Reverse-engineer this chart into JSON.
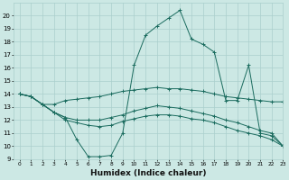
{
  "xlabel": "Humidex (Indice chaleur)",
  "bg_color": "#cce8e4",
  "grid_color": "#aacfcc",
  "line_color": "#1a6b5e",
  "xlim": [
    -0.5,
    23
  ],
  "ylim": [
    9,
    21
  ],
  "yticks": [
    9,
    10,
    11,
    12,
    13,
    14,
    15,
    16,
    17,
    18,
    19,
    20
  ],
  "xticks": [
    0,
    1,
    2,
    3,
    4,
    5,
    6,
    7,
    8,
    9,
    10,
    11,
    12,
    13,
    14,
    15,
    16,
    17,
    18,
    19,
    20,
    21,
    22,
    23
  ],
  "series": [
    [
      14.0,
      13.8,
      13.2,
      13.2,
      13.5,
      13.6,
      13.7,
      13.8,
      14.0,
      14.2,
      14.3,
      14.4,
      14.5,
      14.4,
      14.4,
      14.3,
      14.2,
      14.0,
      13.8,
      13.7,
      13.6,
      13.5,
      13.4,
      13.4
    ],
    [
      14.0,
      13.8,
      13.2,
      12.6,
      12.2,
      10.5,
      9.2,
      9.2,
      9.3,
      11.0,
      16.2,
      18.5,
      19.2,
      19.8,
      20.4,
      18.2,
      17.8,
      17.2,
      13.5,
      13.5,
      16.2,
      11.0,
      10.8,
      10.0
    ],
    [
      14.0,
      13.8,
      13.2,
      12.6,
      12.2,
      12.0,
      12.0,
      12.0,
      12.2,
      12.4,
      12.7,
      12.9,
      13.1,
      13.0,
      12.9,
      12.7,
      12.5,
      12.3,
      12.0,
      11.8,
      11.5,
      11.2,
      11.0,
      10.0
    ],
    [
      14.0,
      13.8,
      13.2,
      12.6,
      12.0,
      11.8,
      11.6,
      11.5,
      11.6,
      11.9,
      12.1,
      12.3,
      12.4,
      12.4,
      12.3,
      12.1,
      12.0,
      11.8,
      11.5,
      11.2,
      11.0,
      10.8,
      10.5,
      10.0
    ]
  ],
  "tick_fontsize": 5.5,
  "xlabel_fontsize": 6.5
}
